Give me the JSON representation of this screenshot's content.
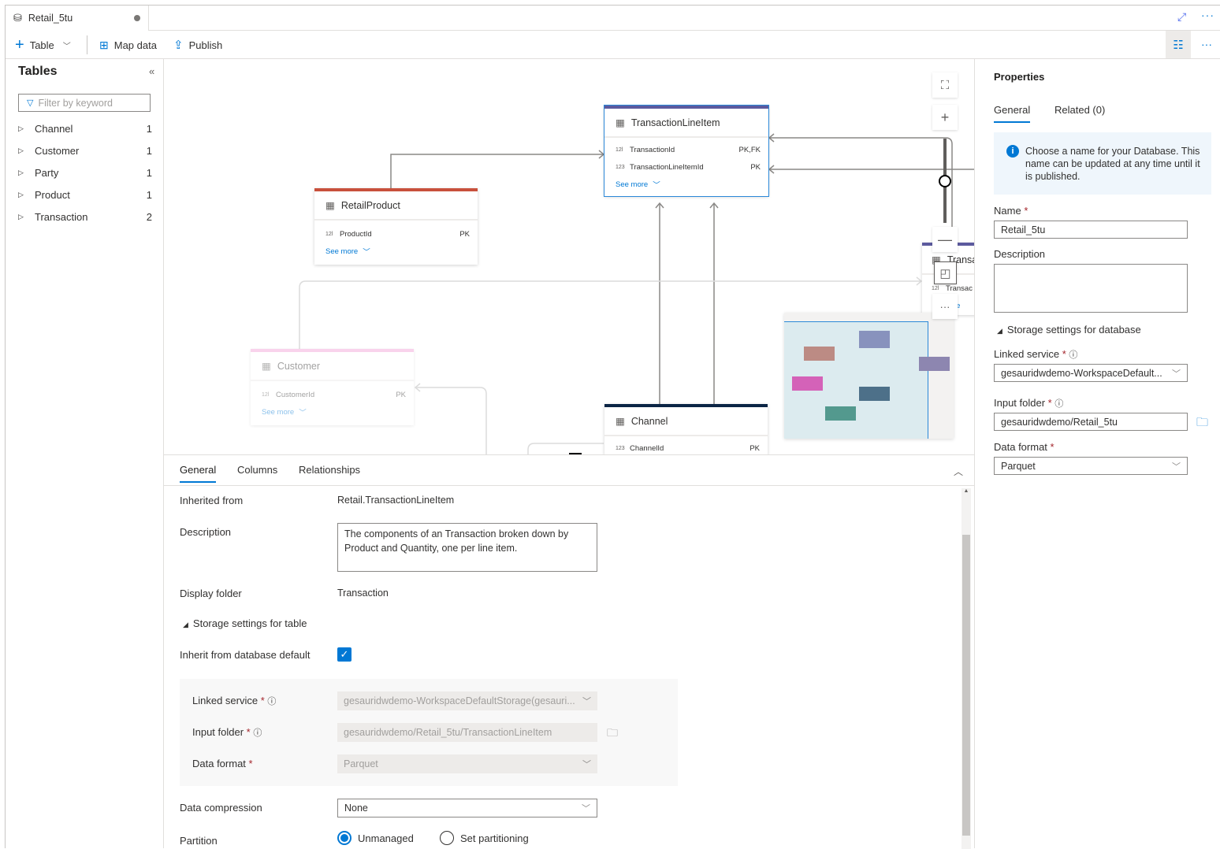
{
  "tab": {
    "title": "Retail_5tu",
    "icon": "database-icon",
    "unsaved": true
  },
  "window": {
    "expand_icon": "expand-icon",
    "more_icon": "more-icon"
  },
  "toolbar": {
    "table_label": "Table",
    "map_data_label": "Map data",
    "publish_label": "Publish",
    "properties_icon": "properties-icon"
  },
  "sidebar": {
    "title": "Tables",
    "filter_placeholder": "Filter by keyword",
    "items": [
      {
        "label": "Channel",
        "count": "1"
      },
      {
        "label": "Customer",
        "count": "1"
      },
      {
        "label": "Party",
        "count": "1"
      },
      {
        "label": "Product",
        "count": "1"
      },
      {
        "label": "Transaction",
        "count": "2"
      }
    ]
  },
  "canvas": {
    "see_more": "See more",
    "entities": {
      "tli": {
        "name": "TransactionLineItem",
        "color": "#5c5a9e",
        "cols": [
          {
            "type": "12l",
            "name": "TransactionId",
            "key": "PK,FK"
          },
          {
            "type": "123",
            "name": "TransactionLineItemId",
            "key": "PK"
          }
        ]
      },
      "rp": {
        "name": "RetailProduct",
        "color": "#c8503c",
        "cols": [
          {
            "type": "12l",
            "name": "ProductId",
            "key": "PK"
          }
        ]
      },
      "cu": {
        "name": "Customer",
        "color": "#f2a0d6",
        "cols": [
          {
            "type": "12l",
            "name": "CustomerId",
            "key": "PK"
          }
        ]
      },
      "ch": {
        "name": "Channel",
        "color": "#0b2545",
        "cols": [
          {
            "type": "123",
            "name": "ChannelId",
            "key": "PK"
          }
        ]
      },
      "tr": {
        "name": "Transa",
        "color": "#5c5a9e",
        "col": "Transac",
        "see_more": "re"
      }
    },
    "zoom_level": 0.5,
    "minimap_colors": [
      "#bc8b84",
      "#8892bd",
      "#d462b8",
      "#4d7089",
      "#53998e",
      "#8d86b0"
    ]
  },
  "bottom": {
    "tabs": [
      "General",
      "Columns",
      "Relationships"
    ],
    "inherited_label": "Inherited from",
    "inherited_value": "Retail.TransactionLineItem",
    "description_label": "Description",
    "description_value": "The components of an Transaction broken down by Product and Quantity, one per line item.",
    "display_folder_label": "Display folder",
    "display_folder_value": "Transaction",
    "storage_label": "Storage settings for table",
    "inherit_label": "Inherit from database default",
    "inherit_checked": true,
    "linked_label": "Linked service",
    "linked_value": "gesauridwdemo-WorkspaceDefaultStorage(gesauri...",
    "input_label": "Input folder",
    "input_value": "gesauridwdemo/Retail_5tu/TransactionLineItem",
    "format_label": "Data format",
    "format_value": "Parquet",
    "compression_label": "Data compression",
    "compression_value": "None",
    "partition_label": "Partition",
    "partition_options": [
      "Unmanaged",
      "Set partitioning"
    ],
    "partition_selected": "Unmanaged"
  },
  "properties": {
    "title": "Properties",
    "tabs": [
      "General",
      "Related (0)"
    ],
    "info": "Choose a name for your Database. This name can be updated at any time until it is published.",
    "name_label": "Name",
    "name_value": "Retail_5tu",
    "description_label": "Description",
    "storage_label": "Storage settings for database",
    "linked_label": "Linked service",
    "linked_value": "gesauridwdemo-WorkspaceDefault...",
    "input_label": "Input folder",
    "input_value": "gesauridwdemo/Retail_5tu",
    "format_label": "Data format",
    "format_value": "Parquet",
    "accent": "#0078d4"
  }
}
